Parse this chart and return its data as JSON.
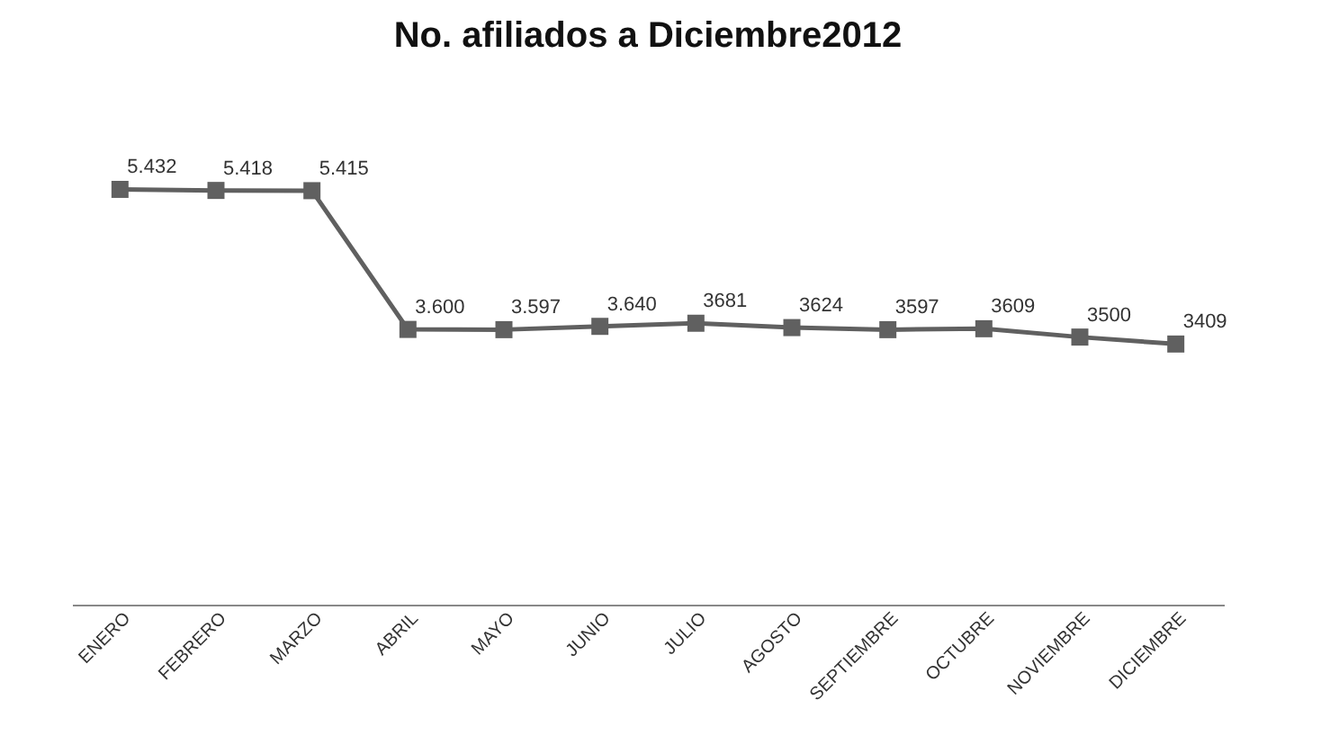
{
  "chart_data": {
    "type": "line",
    "title": "No. afiliados a Diciembre2012",
    "categories": [
      "ENERO",
      "FEBRERO",
      "MARZO",
      "ABRIL",
      "MAYO",
      "JUNIO",
      "JULIO",
      "AGOSTO",
      "SEPTIEMBRE",
      "OCTUBRE",
      "NOVIEMBRE",
      "DICIEMBRE"
    ],
    "series": [
      {
        "color": "#606060",
        "values": [
          5432,
          5418,
          5415,
          3600,
          3597,
          3640,
          3681,
          3624,
          3597,
          3609,
          3500,
          3409
        ],
        "value_labels": [
          "5.432",
          "5.418",
          "5.415",
          "3.600",
          "3.597",
          "3.640",
          "3681",
          "3624",
          "3597",
          "3609",
          "3500",
          "3409"
        ]
      }
    ],
    "marker": "square",
    "line_style": "solid",
    "grid": false,
    "legend": false
  }
}
